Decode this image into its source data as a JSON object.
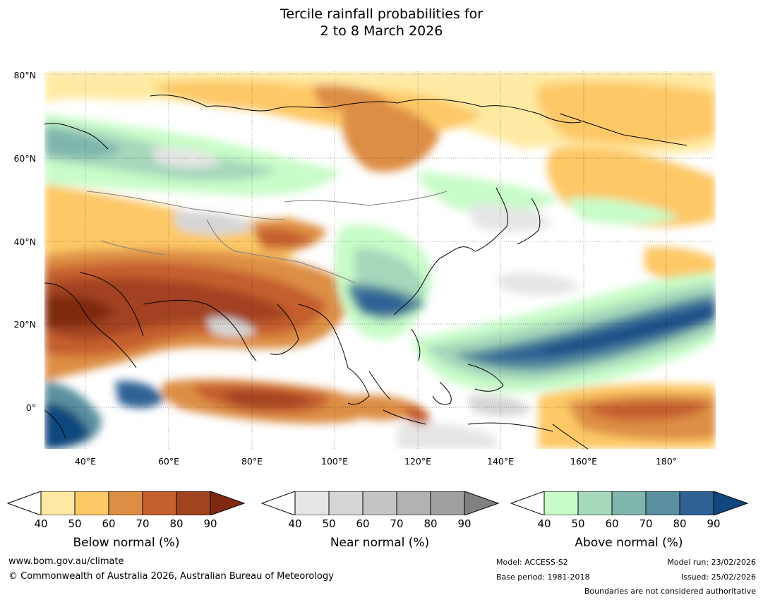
{
  "title": {
    "line1": "Tercile rainfall probabilities for",
    "line2": "2 to 8 March 2026"
  },
  "map": {
    "lat_labels": [
      "80°N",
      "60°N",
      "40°N",
      "20°N",
      "0°"
    ],
    "lon_labels": [
      "40°E",
      "60°E",
      "80°E",
      "100°E",
      "120°E",
      "140°E",
      "160°E",
      "180°"
    ]
  },
  "colorbars": {
    "below": {
      "label": "Below normal (%)",
      "ticks": [
        "40",
        "50",
        "60",
        "70",
        "80",
        "90"
      ],
      "colors": [
        "#ffffff",
        "#ffeaa3",
        "#fdc866",
        "#dd8e45",
        "#c55f2e",
        "#a24320",
        "#7f2a10"
      ]
    },
    "near": {
      "label": "Near normal (%)",
      "ticks": [
        "40",
        "50",
        "60",
        "70",
        "80",
        "90"
      ],
      "colors": [
        "#ffffff",
        "#e5e5e5",
        "#d5d5d5",
        "#c5c5c5",
        "#b2b2b2",
        "#a0a0a0",
        "#808080"
      ]
    },
    "above": {
      "label": "Above normal (%)",
      "ticks": [
        "40",
        "50",
        "60",
        "70",
        "80",
        "90"
      ],
      "colors": [
        "#ffffff",
        "#c8fcc8",
        "#a6d8bb",
        "#7fb5ad",
        "#5a909f",
        "#2e6294",
        "#11467e"
      ]
    }
  },
  "footer": {
    "website": "www.bom.gov.au/climate",
    "copyright": "© Commonwealth of Australia 2026, Australian Bureau of Meteorology",
    "model": "Model: ACCESS-S2",
    "base_period": "Base period: 1981-2018",
    "model_run": "Model run: 23/02/2026",
    "issued": "Issued: 25/02/2026",
    "disclaimer": "Boundaries are not considered authoritative"
  }
}
